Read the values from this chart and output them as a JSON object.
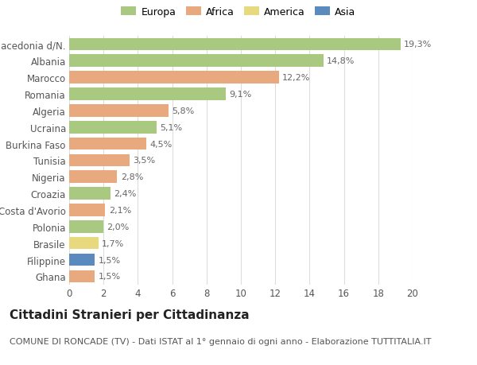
{
  "categories": [
    "Macedonia d/N.",
    "Albania",
    "Marocco",
    "Romania",
    "Algeria",
    "Ucraina",
    "Burkina Faso",
    "Tunisia",
    "Nigeria",
    "Croazia",
    "Costa d'Avorio",
    "Polonia",
    "Brasile",
    "Filippine",
    "Ghana"
  ],
  "values": [
    19.3,
    14.8,
    12.2,
    9.1,
    5.8,
    5.1,
    4.5,
    3.5,
    2.8,
    2.4,
    2.1,
    2.0,
    1.7,
    1.5,
    1.5
  ],
  "labels": [
    "19,3%",
    "14,8%",
    "12,2%",
    "9,1%",
    "5,8%",
    "5,1%",
    "4,5%",
    "3,5%",
    "2,8%",
    "2,4%",
    "2,1%",
    "2,0%",
    "1,7%",
    "1,5%",
    "1,5%"
  ],
  "continents": [
    "Europa",
    "Europa",
    "Africa",
    "Europa",
    "Africa",
    "Europa",
    "Africa",
    "Africa",
    "Africa",
    "Europa",
    "Africa",
    "Europa",
    "America",
    "Asia",
    "Africa"
  ],
  "colors": {
    "Europa": "#a8c97f",
    "Africa": "#e8a97e",
    "America": "#e8d87e",
    "Asia": "#5b8abf"
  },
  "xlim": [
    0,
    20
  ],
  "xticks": [
    0,
    2,
    4,
    6,
    8,
    10,
    12,
    14,
    16,
    18,
    20
  ],
  "background_color": "#ffffff",
  "grid_color": "#dddddd",
  "title": "Cittadini Stranieri per Cittadinanza",
  "subtitle": "COMUNE DI RONCADE (TV) - Dati ISTAT al 1° gennaio di ogni anno - Elaborazione TUTTITALIA.IT",
  "bar_height": 0.75,
  "label_fontsize": 8,
  "ylabel_fontsize": 8.5,
  "xtick_fontsize": 8.5,
  "title_fontsize": 11,
  "subtitle_fontsize": 8,
  "legend_fontsize": 9
}
